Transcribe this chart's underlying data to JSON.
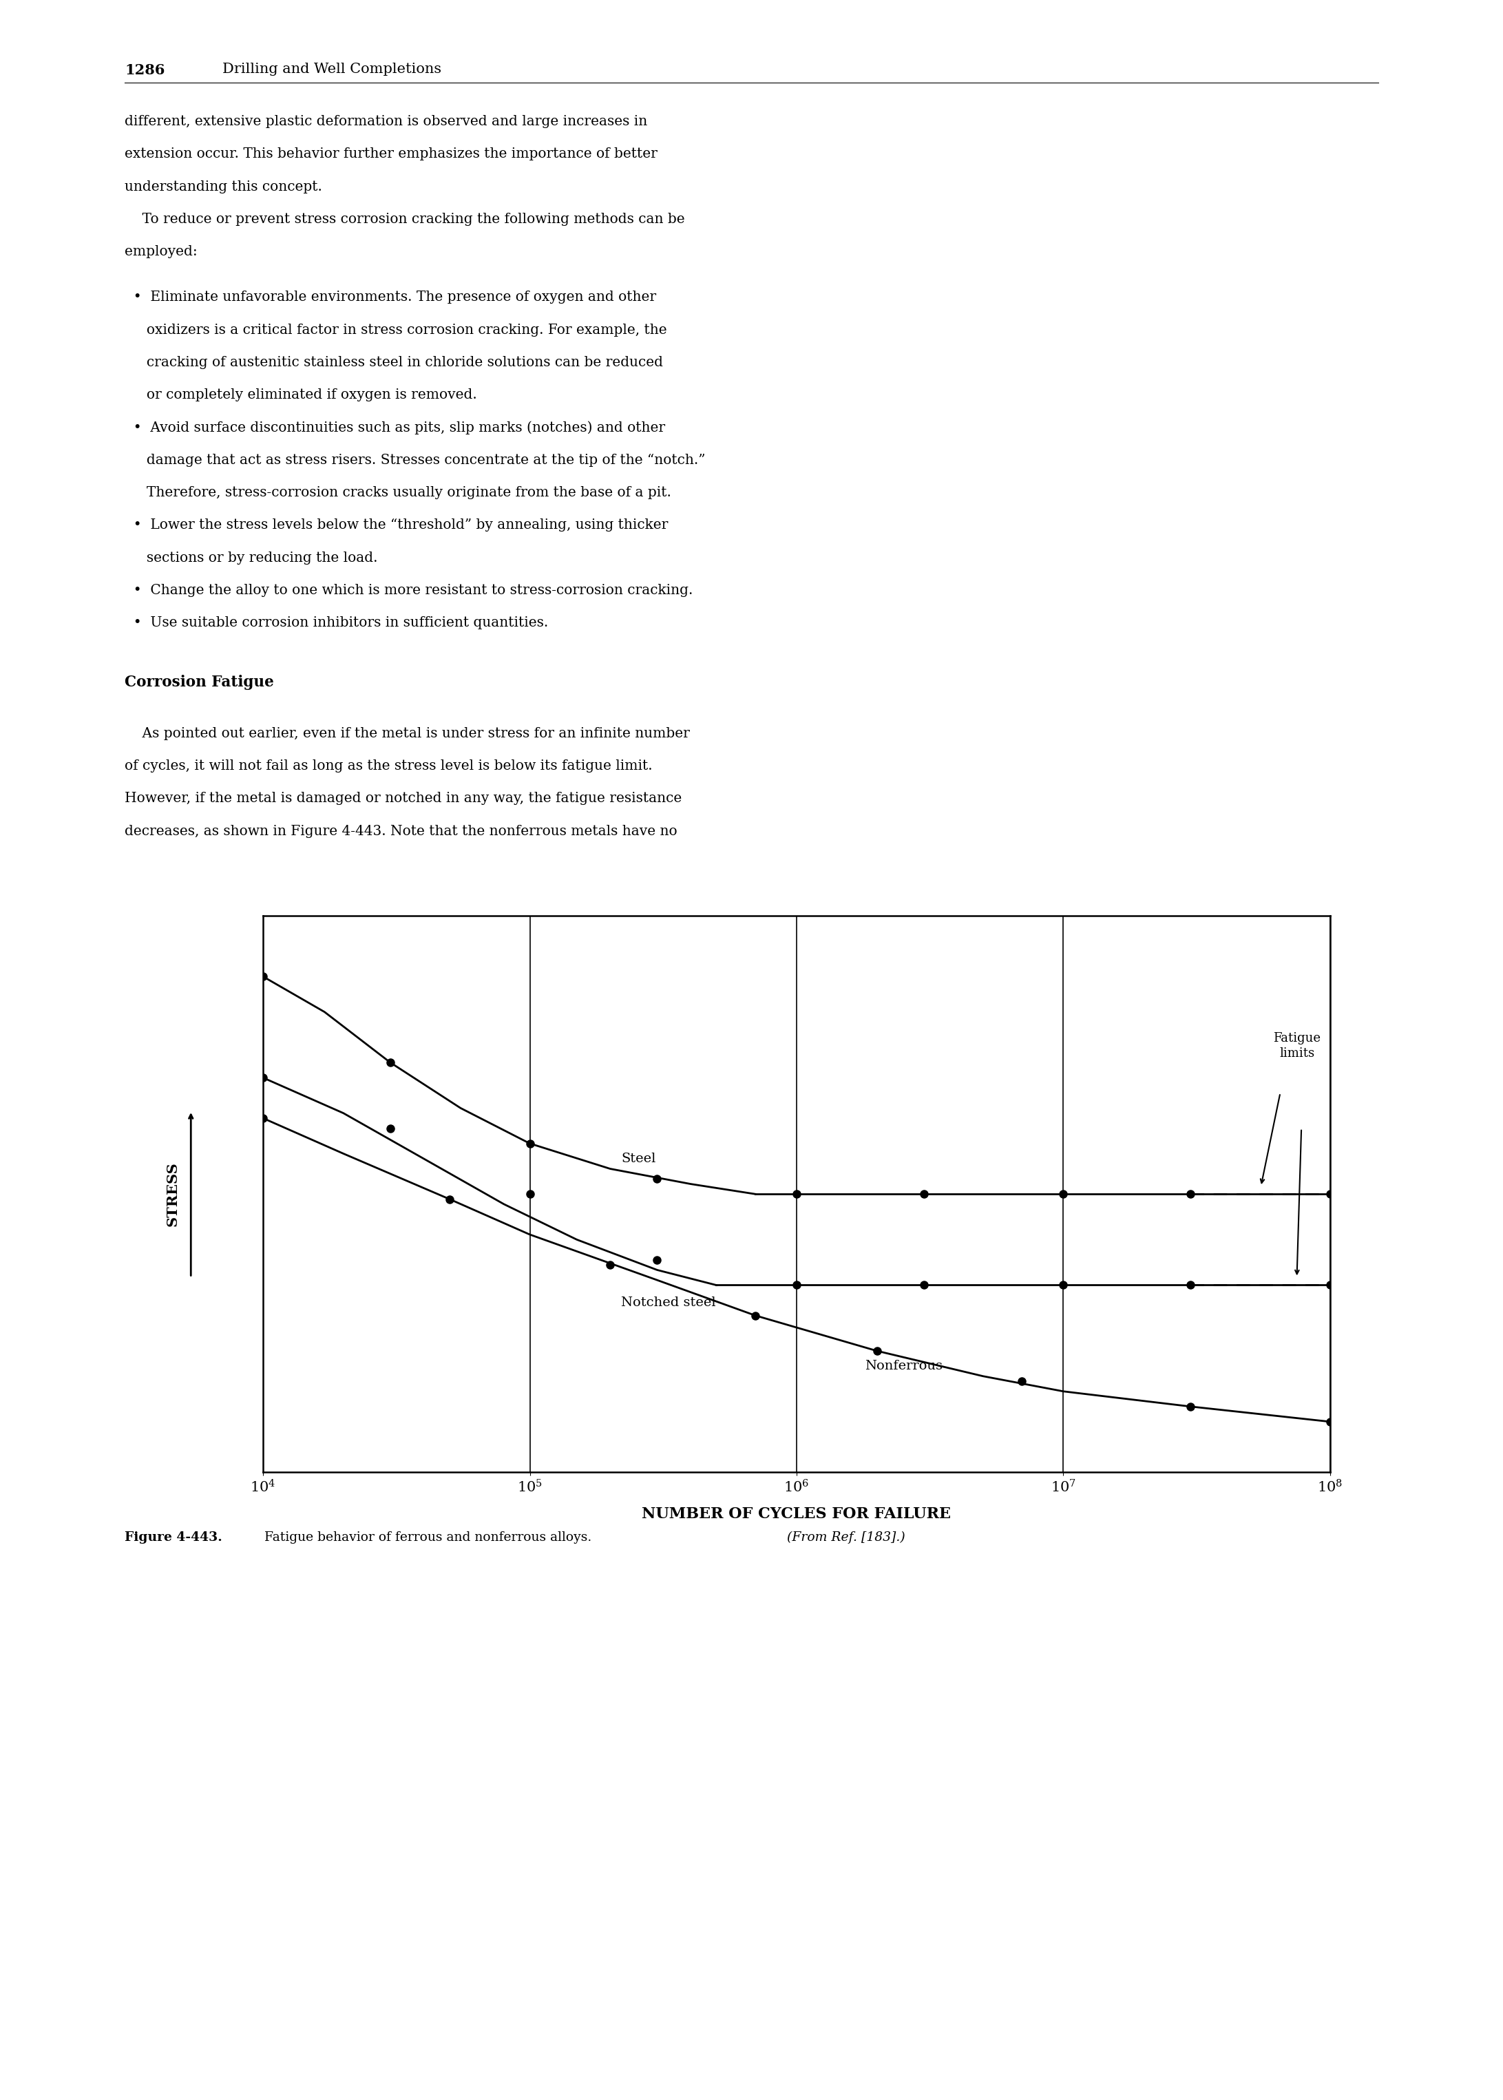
{
  "header_num": "1286",
  "header_title": "Drilling and Well Completions",
  "para1_lines": [
    "different, extensive plastic deformation is observed and large increases in",
    "extension occur. This behavior further emphasizes the importance of better",
    "understanding this concept.",
    "    To reduce or prevent stress corrosion cracking the following methods can be",
    "employed:"
  ],
  "bullet_groups": [
    [
      "  •  Eliminate unfavorable environments. The presence of oxygen and other",
      "     oxidizers is a critical factor in stress corrosion cracking. For example, the",
      "     cracking of austenitic stainless steel in chloride solutions can be reduced",
      "     or completely eliminated if oxygen is removed."
    ],
    [
      "  •  Avoid surface discontinuities such as pits, slip marks (notches) and other",
      "     damage that act as stress risers. Stresses concentrate at the tip of the “notch.”",
      "     Therefore, stress-corrosion cracks usually originate from the base of a pit."
    ],
    [
      "  •  Lower the stress levels below the “threshold” by annealing, using thicker",
      "     sections or by reducing the load."
    ],
    [
      "  •  Change the alloy to one which is more resistant to stress-corrosion cracking."
    ],
    [
      "  •  Use suitable corrosion inhibitors in sufficient quantities."
    ]
  ],
  "section_head": "Corrosion Fatigue",
  "para2_lines": [
    "    As pointed out earlier, even if the metal is under stress for an infinite number",
    "of cycles, it will not fail as long as the stress level is below its fatigue limit.",
    "However, if the metal is damaged or notched in any way, the fatigue resistance",
    "decreases, as shown in Figure 4-443. Note that the nonferrous metals have no"
  ],
  "xlabel": "NUMBER OF CYCLES FOR FAILURE",
  "ylabel": "STRESS",
  "xtick_vals": [
    10000.0,
    100000.0,
    1000000.0,
    10000000.0,
    100000000.0
  ],
  "xtick_labels": [
    "10$^4$",
    "10$^5$",
    "10$^6$",
    "10$^7$",
    "10$^8$"
  ],
  "steel_descend_x": [
    10000,
    17000,
    30000,
    55000,
    100000,
    200000,
    400000,
    700000
  ],
  "steel_descend_y": [
    9.8,
    9.1,
    8.1,
    7.2,
    6.5,
    6.0,
    5.7,
    5.5
  ],
  "steel_flat_x": [
    700000,
    1000000,
    3000000,
    10000000,
    30000000,
    100000000
  ],
  "steel_flat_y": [
    5.5,
    5.5,
    5.5,
    5.5,
    5.5,
    5.5
  ],
  "steel_markers_x": [
    10000,
    30000,
    100000,
    300000,
    1000000,
    3000000,
    10000000,
    30000000,
    100000000
  ],
  "steel_markers_y": [
    9.8,
    8.1,
    6.5,
    5.8,
    5.5,
    5.5,
    5.5,
    5.5,
    5.5
  ],
  "notched_descend_x": [
    10000,
    20000,
    40000,
    80000,
    150000,
    300000,
    500000
  ],
  "notched_descend_y": [
    7.8,
    7.1,
    6.2,
    5.3,
    4.6,
    4.0,
    3.7
  ],
  "notched_flat_x": [
    500000,
    1000000,
    3000000,
    10000000,
    30000000,
    100000000
  ],
  "notched_flat_y": [
    3.7,
    3.7,
    3.7,
    3.7,
    3.7,
    3.7
  ],
  "notched_markers_x": [
    10000,
    30000,
    100000,
    300000,
    1000000,
    3000000,
    10000000,
    30000000,
    100000000
  ],
  "notched_markers_y": [
    7.8,
    6.8,
    5.5,
    4.2,
    3.7,
    3.7,
    3.7,
    3.7,
    3.7
  ],
  "nonferrous_x": [
    10000,
    20000,
    50000,
    100000,
    300000,
    700000,
    2000000,
    5000000,
    10000000,
    30000000,
    100000000
  ],
  "nonferrous_y": [
    7.0,
    6.3,
    5.4,
    4.7,
    3.8,
    3.1,
    2.4,
    1.9,
    1.6,
    1.3,
    1.0
  ],
  "nonferrous_markers_x": [
    10000,
    50000,
    200000,
    700000,
    2000000,
    7000000,
    30000000,
    100000000
  ],
  "nonferrous_markers_y": [
    7.0,
    5.4,
    4.1,
    3.1,
    2.4,
    1.8,
    1.3,
    1.0
  ],
  "ylim": [
    0.0,
    11.0
  ],
  "steel_flat_val": 5.5,
  "notched_flat_val": 3.7,
  "caption_bold": "Figure 4-443.",
  "caption_italic": " Fatigue behavior of ferrous and nonferrous alloys. ",
  "caption_ref": "(From Ref. [183].)"
}
